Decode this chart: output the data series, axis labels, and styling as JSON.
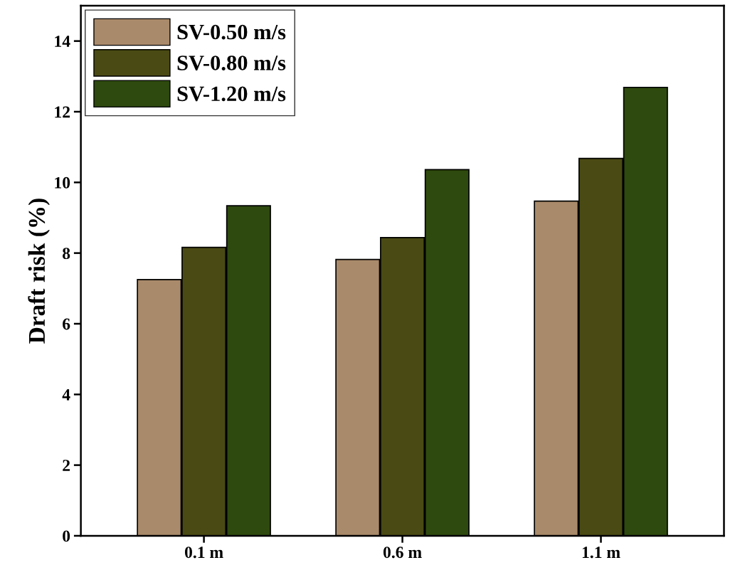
{
  "chart_data": {
    "type": "bar",
    "ylabel": "Draft risk (%)",
    "categories": [
      "0.1 m",
      "0.6 m",
      "1.1 m"
    ],
    "series": [
      {
        "name": "SV-0.50 m/s",
        "color": "#a98a6a",
        "values": [
          7.25,
          7.82,
          9.47
        ]
      },
      {
        "name": "SV-0.80 m/s",
        "color": "#4a4a14",
        "values": [
          8.16,
          8.44,
          10.68
        ]
      },
      {
        "name": "SV-1.20 m/s",
        "color": "#2e4a0e",
        "values": [
          9.34,
          10.36,
          12.69
        ]
      }
    ],
    "ylim": [
      0,
      15
    ],
    "yticks": [
      0,
      2,
      4,
      6,
      8,
      10,
      12,
      14
    ],
    "grid": false,
    "legend": "top left"
  }
}
